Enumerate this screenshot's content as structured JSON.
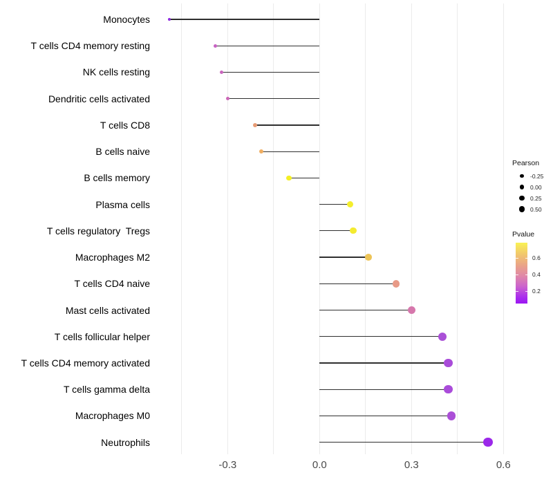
{
  "chart_data": {
    "type": "scatter",
    "subtype": "lollipop",
    "title": "",
    "xlabel": "",
    "ylabel": "",
    "xlim": [
      -0.545,
      0.625
    ],
    "x_ticks": [
      -0.3,
      0.0,
      0.3,
      0.6
    ],
    "x_tick_labels": [
      "-0.3",
      "0.0",
      "0.3",
      "0.6"
    ],
    "gridlines": [
      -0.45,
      -0.3,
      -0.15,
      0.0,
      0.15,
      0.3,
      0.45,
      0.6
    ],
    "grid_on": true,
    "baseline_x": 0.0,
    "rows": [
      {
        "label": "Monocytes",
        "pearson": -0.49,
        "pvalue_est": 0.08,
        "color": "#8E2BE0"
      },
      {
        "label": "T cells CD4 memory resting",
        "pearson": -0.34,
        "pvalue_est": 0.28,
        "color": "#C763C3"
      },
      {
        "label": "NK cells resting",
        "pearson": -0.32,
        "pvalue_est": 0.3,
        "color": "#C966BE"
      },
      {
        "label": "Dendritic cells activated",
        "pearson": -0.3,
        "pvalue_est": 0.32,
        "color": "#CB67B7"
      },
      {
        "label": "T cells CD8",
        "pearson": -0.21,
        "pvalue_est": 0.48,
        "color": "#E79B74"
      },
      {
        "label": "B cells naive",
        "pearson": -0.19,
        "pvalue_est": 0.55,
        "color": "#F0AE61"
      },
      {
        "label": "B cells memory",
        "pearson": -0.1,
        "pvalue_est": 0.73,
        "color": "#F4EF25"
      },
      {
        "label": "Plasma cells",
        "pearson": 0.1,
        "pvalue_est": 0.72,
        "color": "#F4EE2D"
      },
      {
        "label": "T cells regulatory  Tregs",
        "pearson": 0.11,
        "pvalue_est": 0.7,
        "color": "#F4EB30"
      },
      {
        "label": "Macrophages M2",
        "pearson": 0.16,
        "pvalue_est": 0.6,
        "color": "#EDC457"
      },
      {
        "label": "T cells CD4 naive",
        "pearson": 0.25,
        "pvalue_est": 0.45,
        "color": "#E89A87"
      },
      {
        "label": "Mast cells activated",
        "pearson": 0.3,
        "pvalue_est": 0.35,
        "color": "#D677AC"
      },
      {
        "label": "T cells follicular helper",
        "pearson": 0.4,
        "pvalue_est": 0.18,
        "color": "#AA50D7"
      },
      {
        "label": "T cells CD4 memory activated",
        "pearson": 0.42,
        "pvalue_est": 0.17,
        "color": "#A94CD9"
      },
      {
        "label": "T cells gamma delta",
        "pearson": 0.42,
        "pvalue_est": 0.17,
        "color": "#AA4CDA"
      },
      {
        "label": "Macrophages M0",
        "pearson": 0.43,
        "pvalue_est": 0.16,
        "color": "#AB4ED7"
      },
      {
        "label": "Neutrophils",
        "pearson": 0.55,
        "pvalue_est": 0.08,
        "color": "#9B28E9"
      }
    ],
    "legend_size": {
      "title": "Pearson",
      "entries": [
        {
          "label": "-0.25",
          "value": -0.25
        },
        {
          "label": "0.00",
          "value": 0.0
        },
        {
          "label": "0.25",
          "value": 0.25
        },
        {
          "label": "0.50",
          "value": 0.5
        }
      ],
      "position": "right"
    },
    "legend_color": {
      "title": "Pvalue",
      "tick_labels": [
        "0.6",
        "0.4",
        "0.2"
      ],
      "tick_values": [
        0.6,
        0.4,
        0.2
      ],
      "range_est": [
        0.05,
        0.77
      ],
      "gradient_stops": [
        "#F9F254",
        "#F2C96B",
        "#E9A289",
        "#DF87A9",
        "#CB63CD",
        "#A82BEE",
        "#9B16F2"
      ],
      "position": "right"
    }
  },
  "colors": {
    "background": "#ffffff",
    "gridline": "#ebebeb",
    "stem": "#2e2e2e",
    "axis_text": "#4a4a4a",
    "label_text": "#000000",
    "legend_dot": "#000000"
  }
}
